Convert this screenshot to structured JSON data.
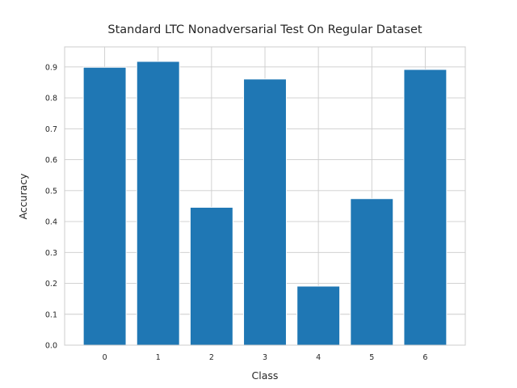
{
  "chart_data": {
    "type": "bar",
    "title": "Standard LTC Nonadversarial Test On Regular Dataset",
    "xlabel": "Class",
    "ylabel": "Accuracy",
    "categories": [
      "0",
      "1",
      "2",
      "3",
      "4",
      "5",
      "6"
    ],
    "values": [
      0.899,
      0.918,
      0.446,
      0.861,
      0.191,
      0.474,
      0.892
    ],
    "ylim": [
      0,
      0.965
    ],
    "yticks": [
      "0.0",
      "0.1",
      "0.2",
      "0.3",
      "0.4",
      "0.5",
      "0.6",
      "0.7",
      "0.8",
      "0.9"
    ],
    "grid": true,
    "bar_color": "#1f77b4",
    "grid_color": "#cccccc"
  }
}
